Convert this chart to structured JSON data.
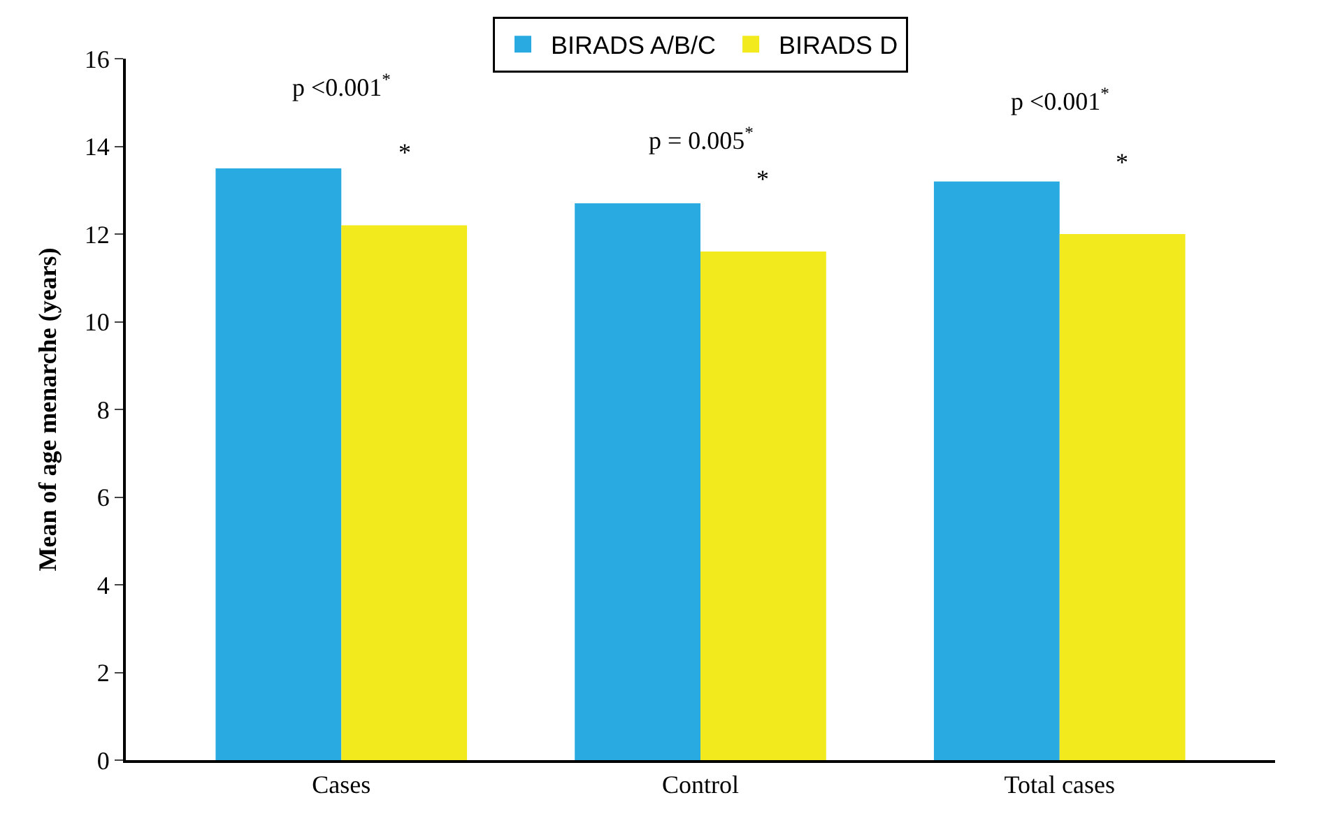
{
  "chart_data": {
    "type": "bar",
    "ylabel": "Mean of age menarche (years)",
    "categories": [
      "Cases",
      "Control",
      "Total cases"
    ],
    "series": [
      {
        "name": "BIRADS A/B/C",
        "color": "#29abe2",
        "values": [
          13.5,
          12.7,
          13.2
        ]
      },
      {
        "name": "BIRADS D",
        "color": "#f2ea1c",
        "values": [
          12.2,
          11.6,
          12.0
        ]
      }
    ],
    "ylim": [
      0,
      16
    ],
    "yticks": [
      0,
      2,
      4,
      6,
      8,
      10,
      12,
      14,
      16
    ],
    "legend": "top",
    "annotations": [
      "p <0.001$^{*}$",
      "p = 0.005$^{*}$",
      "p <0.001$^{*}$",
      "*",
      "*",
      "*"
    ]
  }
}
